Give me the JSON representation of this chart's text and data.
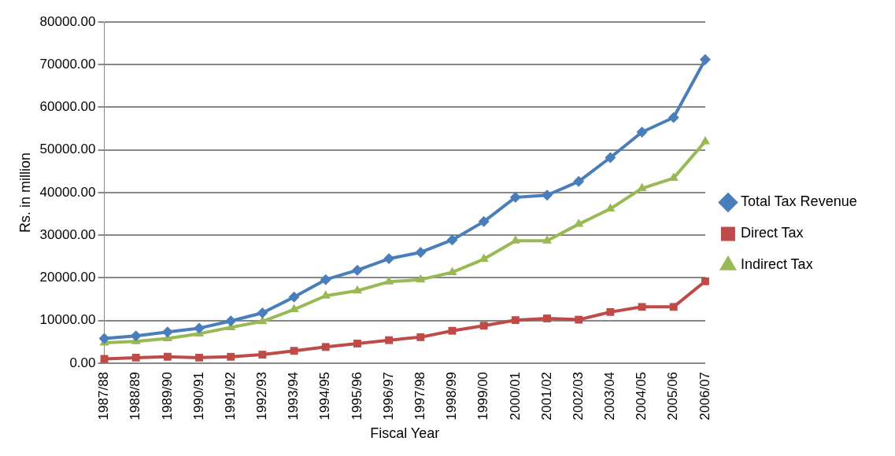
{
  "chart_data": {
    "type": "line",
    "xlabel": "Fiscal Year",
    "ylabel": "Rs. in million",
    "categories": [
      "1987/88",
      "1988/89",
      "1989/90",
      "1990/91",
      "1991/92",
      "1992/93",
      "1993/94",
      "1994/95",
      "1995/96",
      "1996/97",
      "1997/98",
      "1998/99",
      "1999/00",
      "2000/01",
      "2001/02",
      "2002/03",
      "2003/04",
      "2004/05",
      "2005/06",
      "2006/07"
    ],
    "series": [
      {
        "name": "Total Tax Revenue",
        "color": "#4a7ebb",
        "marker": "diamond",
        "values": [
          5800,
          6400,
          7300,
          8200,
          9900,
          11800,
          15500,
          19600,
          21800,
          24500,
          26000,
          28900,
          33200,
          38900,
          39400,
          42600,
          48200,
          54200,
          57600,
          71200
        ]
      },
      {
        "name": "Direct Tax",
        "color": "#be4b48",
        "marker": "square",
        "values": [
          1000,
          1300,
          1500,
          1300,
          1500,
          2000,
          2900,
          3800,
          4600,
          5400,
          6100,
          7600,
          8800,
          10100,
          10500,
          10200,
          12000,
          13200,
          13200,
          19200
        ]
      },
      {
        "name": "Indirect Tax",
        "color": "#98b954",
        "marker": "triangle",
        "values": [
          4800,
          5100,
          5800,
          6900,
          8400,
          9800,
          12600,
          15800,
          17000,
          19100,
          19600,
          21300,
          24400,
          28700,
          28700,
          32600,
          36200,
          41000,
          43400,
          52000
        ]
      }
    ],
    "ylim": [
      0,
      80000
    ],
    "yticks": [
      {
        "value": 0,
        "label": "0.00"
      },
      {
        "value": 10000,
        "label": "10000.00"
      },
      {
        "value": 20000,
        "label": "20000.00"
      },
      {
        "value": 30000,
        "label": "30000.00"
      },
      {
        "value": 40000,
        "label": "40000.00"
      },
      {
        "value": 50000,
        "label": "50000.00"
      },
      {
        "value": 60000,
        "label": "60000.00"
      },
      {
        "value": 70000,
        "label": "70000.00"
      },
      {
        "value": 80000,
        "label": "80000.00"
      }
    ],
    "grid": "y",
    "legend": "right",
    "line_style": "solid"
  }
}
